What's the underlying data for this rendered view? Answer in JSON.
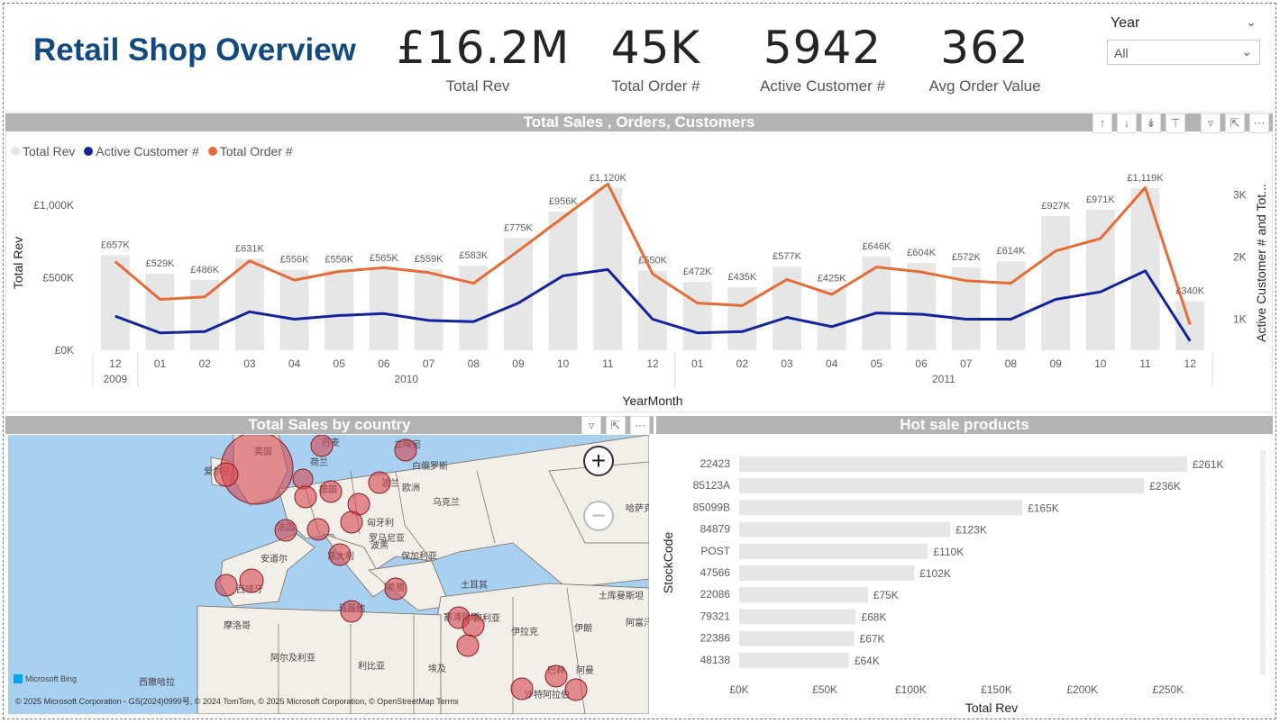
{
  "header": {
    "title": "Retail Shop Overview",
    "kpis": [
      {
        "value": "£16.2M",
        "label": "Total Rev"
      },
      {
        "value": "45K",
        "label": "Total Order #"
      },
      {
        "value": "5942",
        "label": "Active Customer #"
      },
      {
        "value": "362",
        "label": "Avg Order Value"
      }
    ]
  },
  "slicer": {
    "title": "Year",
    "value": "All"
  },
  "combo": {
    "title": "Total Sales , Orders, Customers",
    "legend": [
      "Total Rev",
      "Active Customer #",
      "Total Order #"
    ],
    "xlabel": "YearMonth",
    "ylabel_left": "Total Rev",
    "ylabel_right": "Active Customer # and Tot...",
    "year_labels": [
      "2009",
      "2010",
      "2011"
    ]
  },
  "map": {
    "title": "Total Sales by country",
    "credit": "© 2025 Microsoft Corporation - GS(2024)0999号, © 2024 TomTom, © 2025 Microsoft Corporation, © OpenStreetMap  Terms",
    "bing": "Microsoft Bing",
    "labels": [
      "英国",
      "爱尔兰",
      "欧洲",
      "白俄罗斯",
      "乌克兰",
      "波兰",
      "德国",
      "法国",
      "匈牙利",
      "罗马尼亚",
      "波黑",
      "保加利亚",
      "安道尔",
      "意大利",
      "西班牙",
      "希腊",
      "土耳其",
      "马耳他",
      "塞浦路斯",
      "伊拉克",
      "伊朗",
      "叙利亚",
      "摩洛哥",
      "阿尔及利亚",
      "利比亚",
      "埃及",
      "巴林",
      "阿曼",
      "沙特阿拉伯",
      "西撒哈拉",
      "哈萨克",
      "土库曼斯坦",
      "阿富汗",
      "荷兰",
      "丹麦",
      "立陶宛"
    ]
  },
  "bars": {
    "title": "Hot sale products",
    "ylabel": "StockCode",
    "xlabel": "Total Rev"
  },
  "colors": {
    "rev": "#e6e6e6",
    "customers": "#12239e",
    "orders": "#e66c37",
    "title": "#12497f"
  },
  "chart_data": [
    {
      "type": "bar+line",
      "title": "Total Sales , Orders, Customers",
      "categories": [
        "12",
        "01",
        "02",
        "03",
        "04",
        "05",
        "06",
        "07",
        "08",
        "09",
        "10",
        "11",
        "12",
        "01",
        "02",
        "03",
        "04",
        "05",
        "06",
        "07",
        "08",
        "09",
        "10",
        "11",
        "12"
      ],
      "years": [
        "2009",
        "2010",
        "2010",
        "2010",
        "2010",
        "2010",
        "2010",
        "2010",
        "2010",
        "2010",
        "2010",
        "2010",
        "2010",
        "2011",
        "2011",
        "2011",
        "2011",
        "2011",
        "2011",
        "2011",
        "2011",
        "2011",
        "2011",
        "2011",
        "2011"
      ],
      "series": [
        {
          "name": "Total Rev",
          "axis": "left",
          "kind": "bar",
          "values": [
            657,
            529,
            486,
            631,
            556,
            556,
            565,
            559,
            583,
            775,
            956,
            1120,
            550,
            472,
            435,
            577,
            425,
            646,
            604,
            572,
            614,
            927,
            971,
            1119,
            340
          ],
          "labels": [
            "£657K",
            "£529K",
            "£486K",
            "£631K",
            "£556K",
            "£556K",
            "£565K",
            "£559K",
            "£583K",
            "£775K",
            "£956K",
            "£1,120K",
            "£550K",
            "£472K",
            "£435K",
            "£577K",
            "£425K",
            "£646K",
            "£604K",
            "£572K",
            "£614K",
            "£927K",
            "£971K",
            "£1,119K",
            "£340K"
          ]
        },
        {
          "name": "Active Customer #",
          "axis": "right",
          "kind": "line",
          "values": [
            1050,
            780,
            800,
            1120,
            1000,
            1060,
            1090,
            980,
            960,
            1260,
            1700,
            1800,
            1000,
            780,
            800,
            1030,
            880,
            1100,
            1080,
            1000,
            1000,
            1320,
            1440,
            1780,
            650
          ]
        },
        {
          "name": "Total Order #",
          "axis": "right",
          "kind": "line",
          "values": [
            1930,
            1320,
            1360,
            1940,
            1630,
            1770,
            1830,
            1750,
            1580,
            2100,
            2640,
            3180,
            1730,
            1260,
            1220,
            1640,
            1400,
            1840,
            1760,
            1620,
            1580,
            2100,
            2300,
            3120,
            910
          ]
        }
      ],
      "ylim_left": [
        0,
        1200
      ],
      "yticks_left": [
        "£0K",
        "£500K",
        "£1,000K"
      ],
      "ylim_right": [
        500,
        3300
      ],
      "yticks_right": [
        "1K",
        "2K",
        "3K"
      ],
      "xlabel": "YearMonth",
      "ylabel": "Total Rev",
      "ylabel_right": "Active Customer # and Tot..."
    },
    {
      "type": "bar",
      "orientation": "horizontal",
      "title": "Hot sale products",
      "categories": [
        "22423",
        "85123A",
        "85099B",
        "84879",
        "POST",
        "47566",
        "22086",
        "79321",
        "22386",
        "48138"
      ],
      "values": [
        261,
        236,
        165,
        123,
        110,
        102,
        75,
        68,
        67,
        64
      ],
      "labels": [
        "£261K",
        "£236K",
        "£165K",
        "£123K",
        "£110K",
        "£102K",
        "£75K",
        "£68K",
        "£67K",
        "£64K"
      ],
      "xlim": [
        0,
        280
      ],
      "xticks": [
        "£0K",
        "£50K",
        "£100K",
        "£150K",
        "£200K",
        "£250K"
      ],
      "xlabel": "Total Rev",
      "ylabel": "StockCode"
    }
  ]
}
